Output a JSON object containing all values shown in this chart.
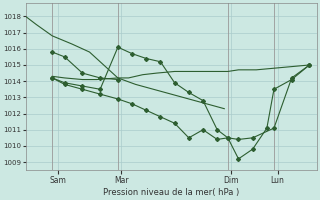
{
  "bg_color": "#cce8e2",
  "grid_color": "#aacccc",
  "line_color": "#2d5e30",
  "title": "Pression niveau de la mer( hPa )",
  "ylim": [
    1008.5,
    1018.8
  ],
  "yticks": [
    1009,
    1010,
    1011,
    1012,
    1013,
    1014,
    1015,
    1016,
    1017,
    1018
  ],
  "xlim": [
    0,
    8.2
  ],
  "day_positions": [
    0.9,
    2.7,
    5.8,
    7.1
  ],
  "day_labels": [
    "Sam",
    "Mar",
    "Dim",
    "Lun"
  ],
  "vlines": [
    0.75,
    2.6,
    5.7,
    7.0
  ],
  "line1_x": [
    0.0,
    0.3,
    0.75,
    1.3,
    1.8,
    2.3,
    2.6,
    3.1,
    3.6,
    4.1,
    4.6,
    5.1,
    5.6
  ],
  "line1_y": [
    1018.0,
    1017.5,
    1016.8,
    1016.3,
    1015.8,
    1014.8,
    1014.2,
    1013.8,
    1013.5,
    1013.2,
    1012.9,
    1012.6,
    1012.3
  ],
  "line1_markers": false,
  "line2_x": [
    0.75,
    1.1,
    1.6,
    2.1,
    2.6
  ],
  "line2_y": [
    1015.8,
    1015.5,
    1014.5,
    1014.2,
    1014.1
  ],
  "line2_markers": true,
  "line3_x": [
    0.75,
    1.1,
    1.6,
    2.0,
    2.6,
    2.9,
    3.3,
    3.7,
    4.2,
    4.7,
    5.2,
    5.5,
    5.7,
    6.0,
    6.5,
    7.0,
    7.5,
    8.0
  ],
  "line3_y": [
    1014.3,
    1014.2,
    1014.1,
    1014.1,
    1014.2,
    1014.2,
    1014.4,
    1014.5,
    1014.6,
    1014.6,
    1014.6,
    1014.6,
    1014.6,
    1014.7,
    1014.7,
    1014.8,
    1014.9,
    1015.0
  ],
  "line3_markers": false,
  "line4_x": [
    0.75,
    1.1,
    1.6,
    2.1,
    2.6,
    3.0,
    3.4,
    3.8,
    4.2,
    4.6,
    5.0,
    5.4,
    5.7,
    6.0,
    6.4,
    7.0,
    7.5,
    8.0
  ],
  "line4_y": [
    1014.2,
    1013.9,
    1013.7,
    1013.5,
    1016.1,
    1015.7,
    1015.4,
    1015.2,
    1013.9,
    1013.3,
    1012.8,
    1011.0,
    1010.5,
    1010.4,
    1010.5,
    1011.1,
    1014.2,
    1015.0
  ],
  "line4_markers": true,
  "line5_x": [
    0.75,
    1.1,
    1.6,
    2.1,
    2.6,
    3.0,
    3.4,
    3.8,
    4.2,
    4.6,
    5.0,
    5.4,
    5.7,
    6.0,
    6.4,
    6.8,
    7.0,
    7.5,
    8.0
  ],
  "line5_y": [
    1014.2,
    1013.8,
    1013.5,
    1013.2,
    1012.9,
    1012.6,
    1012.2,
    1011.8,
    1011.4,
    1010.5,
    1011.0,
    1010.4,
    1010.5,
    1009.2,
    1009.8,
    1011.1,
    1013.5,
    1014.1,
    1015.0
  ],
  "line5_markers": true
}
